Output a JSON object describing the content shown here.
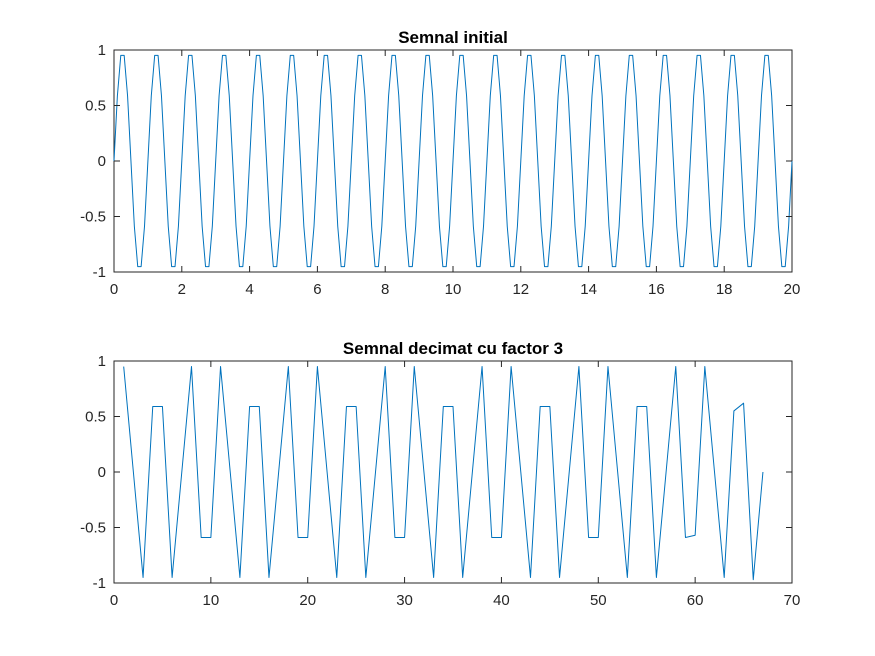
{
  "chart_data": [
    {
      "type": "line",
      "title": "Semnal initial",
      "xlabel": "",
      "ylabel": "",
      "xlim": [
        0,
        20
      ],
      "ylim": [
        -1,
        1
      ],
      "xticks": [
        "0",
        "2",
        "4",
        "6",
        "8",
        "10",
        "12",
        "14",
        "16",
        "18",
        "20"
      ],
      "yticks": [
        "-1",
        "-0.5",
        "0",
        "0.5",
        "1"
      ],
      "grid": false,
      "color": "#0072bd",
      "signal": {
        "amplitude": 1,
        "frequency": 1,
        "sample_step": 0.1,
        "x_start": 0,
        "x_end": 20
      }
    },
    {
      "type": "line",
      "title": "Semnal decimat cu factor 3",
      "xlabel": "",
      "ylabel": "",
      "xlim": [
        0,
        70
      ],
      "ylim": [
        -1,
        1
      ],
      "xticks": [
        "0",
        "10",
        "20",
        "30",
        "40",
        "50",
        "60",
        "70"
      ],
      "yticks": [
        "-1",
        "-0.5",
        "0",
        "0.5",
        "1"
      ],
      "grid": false,
      "color": "#0072bd",
      "series": [
        {
          "x": [
            1,
            2,
            3,
            4,
            5,
            6,
            7,
            8,
            9,
            10,
            11,
            12,
            13,
            14,
            15,
            16,
            17,
            18,
            19,
            20,
            21,
            22,
            23,
            24,
            25,
            26,
            27,
            28,
            29,
            30,
            31,
            32,
            33,
            34,
            35,
            36,
            37,
            38,
            39,
            40,
            41,
            42,
            43,
            44,
            45,
            46,
            47,
            48,
            49,
            50,
            51,
            52,
            53,
            54,
            55,
            56,
            57,
            58,
            59,
            60,
            61,
            62,
            63,
            64,
            65,
            66,
            67
          ],
          "y": [
            0.95,
            0,
            -0.95,
            0.59,
            0.59,
            -0.95,
            0,
            0.95,
            -0.59,
            -0.59,
            0.95,
            0,
            -0.95,
            0.59,
            0.59,
            -0.95,
            0,
            0.95,
            -0.59,
            -0.59,
            0.95,
            0,
            -0.95,
            0.59,
            0.59,
            -0.95,
            0,
            0.95,
            -0.59,
            -0.59,
            0.95,
            0,
            -0.95,
            0.59,
            0.59,
            -0.95,
            0,
            0.95,
            -0.59,
            -0.59,
            0.95,
            0,
            -0.95,
            0.59,
            0.59,
            -0.95,
            0,
            0.95,
            -0.59,
            -0.59,
            0.95,
            0,
            -0.95,
            0.59,
            0.59,
            -0.95,
            0,
            0.95,
            -0.59,
            -0.57,
            0.95,
            0,
            -0.95,
            0.55,
            0.62,
            -0.97,
            0
          ]
        }
      ]
    }
  ]
}
